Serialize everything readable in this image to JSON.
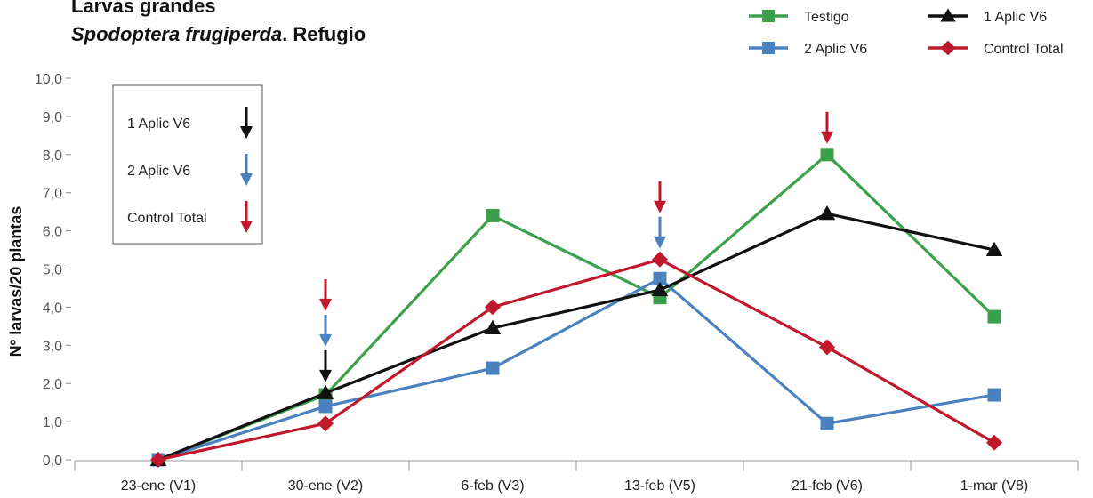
{
  "title": {
    "line1": "Larvas grandes",
    "line2_italic": "Spodoptera frugiperda",
    "line2_rest": ". Refugio"
  },
  "chart_data": {
    "type": "line",
    "ylabel": "Nº larvas/20 plantas",
    "xlabel": "",
    "ylim": [
      0,
      10
    ],
    "yticks": [
      "0,0",
      "1,0",
      "2,0",
      "3,0",
      "4,0",
      "5,0",
      "6,0",
      "7,0",
      "8,0",
      "9,0",
      "10,0"
    ],
    "categories": [
      "23-ene (V1)",
      "30-ene (V2)",
      "6-feb (V3)",
      "13-feb (V5)",
      "21-feb (V6)",
      "1-mar (V8)"
    ],
    "legend_placement": "top-right",
    "grid": false,
    "series": [
      {
        "name": "Testigo",
        "color": "#3aa14a",
        "marker": "square",
        "values": [
          0,
          1.7,
          6.4,
          4.25,
          8.0,
          3.75
        ]
      },
      {
        "name": "2 Aplic V6",
        "color": "#4a82c0",
        "marker": "square",
        "values": [
          0,
          1.4,
          2.4,
          4.75,
          0.95,
          1.7
        ]
      },
      {
        "name": "1 Aplic V6",
        "color": "#111111",
        "marker": "triangle",
        "values": [
          0,
          1.75,
          3.45,
          4.45,
          6.45,
          5.5
        ]
      },
      {
        "name": "Control Total",
        "color": "#c0192d",
        "marker": "diamond",
        "values": [
          0,
          0.95,
          4.0,
          5.25,
          2.95,
          0.45
        ]
      }
    ],
    "application_box": [
      {
        "label": "1 Aplic V6",
        "color": "#111111"
      },
      {
        "label": "2 Aplic V6",
        "color": "#4a82c0"
      },
      {
        "label": "Control Total",
        "color": "#c0192d"
      }
    ],
    "application_arrows": [
      {
        "category_index": 1,
        "series": [
          "Control Total",
          "2 Aplic V6",
          "1 Aplic V6"
        ]
      },
      {
        "category_index": 3,
        "series": [
          "Control Total",
          "2 Aplic V6"
        ]
      },
      {
        "category_index": 4,
        "series": [
          "Control Total"
        ]
      }
    ]
  }
}
